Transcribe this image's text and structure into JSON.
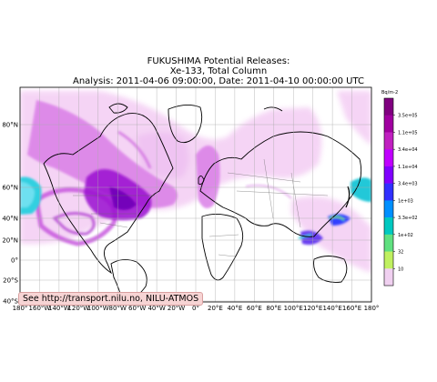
{
  "title_lines": [
    "FUKUSHIMA Potential Releases:",
    "Xe-133, Total Column",
    "Analysis: 2011-04-06  09:00:00, Date: 2011-04-10  00:00:00 UTC"
  ],
  "credit": "See http://transport.nilu.no, NILU-ATMOS",
  "colorbar": {
    "unit": "Bq/m-2",
    "labels": [
      "3.5e+05",
      "1.1e+05",
      "3.4e+04",
      "1.1e+04",
      "3.4e+03",
      "1e+03",
      "3.3e+02",
      "1e+02",
      "32",
      "10"
    ],
    "colors": [
      "#800080",
      "#a000a0",
      "#c020c0",
      "#c000ff",
      "#8000ff",
      "#3030ff",
      "#0090ff",
      "#00c8c0",
      "#60e080",
      "#c0f060",
      "#f0d0f0"
    ]
  },
  "lat_labels": [
    "80°N",
    "60°N",
    "40°N",
    "20°N",
    "0°",
    "20°S",
    "40°S"
  ],
  "lon_labels": [
    "180°",
    "160°W",
    "140°W",
    "120°W",
    "100°W",
    "80°W",
    "60°W",
    "40°W",
    "20°W",
    "0°",
    "20°E",
    "40°E",
    "60°E",
    "80°E",
    "100°E",
    "120°E",
    "140°E",
    "160°E",
    "180°"
  ],
  "map_colors": {
    "land_outline": "#000000",
    "borders": "#555555",
    "grid": "#aaaaaa",
    "plume_light": "#f0c0f0",
    "plume_mid": "#d070e0",
    "plume_dark": "#8a00c8",
    "plume_cyan": "#20c8d8",
    "plume_blue": "#3040ff",
    "plume_green": "#60e060"
  }
}
